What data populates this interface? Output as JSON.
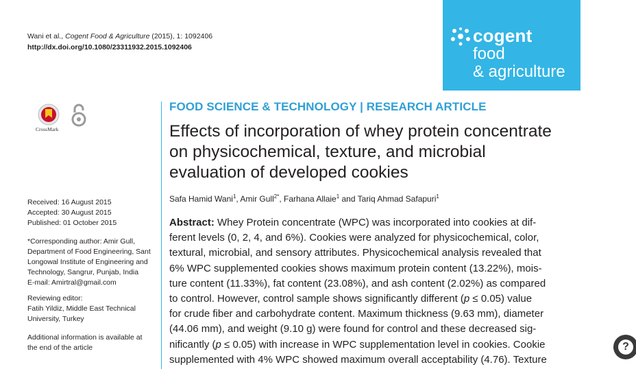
{
  "citation": {
    "line1_prefix": "Wani et al., ",
    "journal_italic": "Cogent Food & Agriculture",
    "line1_suffix": " (2015), 1: 1092406",
    "doi": "http://dx.doi.org/10.1080/23311932.2015.1092406"
  },
  "brand": {
    "line1": "cogent",
    "line2": "food",
    "line3": "& agriculture",
    "bg_color": "#33b5e5"
  },
  "badges": {
    "crossmark_label": "CrossMark",
    "open_access_icon": "open-access-lock-icon"
  },
  "dates": {
    "received": "Received: 16 August 2015",
    "accepted": "Accepted: 30 August 2015",
    "published": "Published: 01 October 2015"
  },
  "correspondence": {
    "l1": "*Corresponding author: Amir Gull,",
    "l2": "Department of Food Engineering, Sant",
    "l3": "Longowal Institute of Engineering and",
    "l4": "Technology, Sangrur, Punjab, India",
    "email_label": "E-mail: ",
    "email": "Amirtral@gmail.com"
  },
  "editor": {
    "heading": "Reviewing editor:",
    "l1": "Fatih Yildiz, Middle East Technical",
    "l2": "University, Turkey"
  },
  "additional": {
    "l1": "Additional information is available at",
    "l2": "the end of the article"
  },
  "section_label": "FOOD SCIENCE & TECHNOLOGY | RESEARCH ARTICLE",
  "title": {
    "l1": "Effects of incorporation of whey protein concentrate",
    "l2": "on physicochemical, texture, and microbial",
    "l3": "evaluation of developed cookies"
  },
  "authors": {
    "a1": "Safa Hamid Wani",
    "a1_sup": "1",
    "sep1": ", ",
    "a2": "Amir Gull",
    "a2_sup": "2*",
    "sep2": ", ",
    "a3": "Farhana Allaie",
    "a3_sup": "1",
    "sep3": " and ",
    "a4": "Tariq Ahmad Safapuri",
    "a4_sup": "1"
  },
  "abstract": {
    "label": "Abstract:",
    "l1": " Whey Protein concentrate (WPC) was incorporated into cookies at dif-",
    "l2": "ferent levels (0, 2, 4, and 6%). Cookies were analyzed for physicochemical, color,",
    "l3": "textural, microbial, and sensory attributes. Physicochemical analysis revealed that",
    "l4": "6% WPC supplemented cookies shows maximum protein content (13.22%), mois-",
    "l5": "ture content (11.33%), fat content (23.08%), and ash content (2.02%) as compared",
    "l6a": "to control. However, control sample shows significantly different (",
    "l6p": "p",
    "l6b": " ≤ 0.05) value",
    "l7": "for crude fiber and carbohydrate content. Maximum thickness (9.63 mm), diameter",
    "l8": "(44.06 mm), and weight (9.10 g) were found for control and these decreased sig-",
    "l9a": "nificantly (",
    "l9p": "p",
    "l9b": " ≤ 0.05) with increase in WPC supplementation level in cookies. Cookie",
    "l10": "supplemented with 4% WPC showed maximum overall acceptability (4.76). Texture"
  },
  "help_button": {
    "label": "?",
    "icon": "question-mark-icon"
  }
}
